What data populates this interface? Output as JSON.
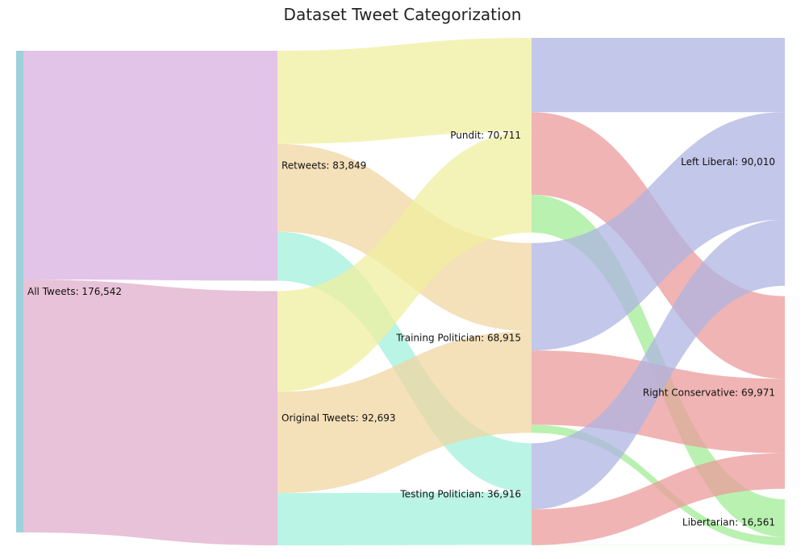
{
  "chart_data": {
    "type": "sankey",
    "title": "Dataset Tweet Categorization",
    "nodes": [
      {
        "id": "all",
        "label": "All Tweets: 176,542",
        "column": 0,
        "color": "#9dd1dc"
      },
      {
        "id": "retweets",
        "label": "Retweets: 83,849",
        "column": 1,
        "color": "#d8b0e0"
      },
      {
        "id": "original",
        "label": "Original Tweets: 92,693",
        "column": 1,
        "color": "#e0aecb"
      },
      {
        "id": "pundit",
        "label": "Pundit: 70,711",
        "column": 2,
        "color": "#f0ef9f"
      },
      {
        "id": "training",
        "label": "Training Politician: 68,915",
        "column": 2,
        "color": "#f0d6a2"
      },
      {
        "id": "testing",
        "label": "Testing Politician: 36,916",
        "column": 2,
        "color": "#a2f0db"
      },
      {
        "id": "left",
        "label": "Left Liberal: 90,010",
        "column": 3,
        "color": "#afb4e1"
      },
      {
        "id": "right",
        "label": "Right Conservative: 69,971",
        "column": 3,
        "color": "#eb9b9b"
      },
      {
        "id": "libertarian",
        "label": "Libertarian: 16,561",
        "column": 3,
        "color": "#a2ec95"
      }
    ],
    "links": [
      {
        "source": "all",
        "target": "retweets",
        "value": 83849,
        "color": "#d8b0e0"
      },
      {
        "source": "all",
        "target": "original",
        "value": 92693,
        "color": "#e0aecb"
      },
      {
        "source": "retweets",
        "target": "pundit",
        "value": 34000,
        "color": "#f0ef9f"
      },
      {
        "source": "retweets",
        "target": "training",
        "value": 32000,
        "color": "#f0d6a2"
      },
      {
        "source": "retweets",
        "target": "testing",
        "value": 17849,
        "color": "#a2f0db"
      },
      {
        "source": "original",
        "target": "pundit",
        "value": 36711,
        "color": "#f0ef9f"
      },
      {
        "source": "original",
        "target": "training",
        "value": 36915,
        "color": "#f0d6a2"
      },
      {
        "source": "original",
        "target": "testing",
        "value": 19067,
        "color": "#a2f0db"
      },
      {
        "source": "pundit",
        "target": "left",
        "value": 27000,
        "color": "#afb4e1"
      },
      {
        "source": "pundit",
        "target": "right",
        "value": 30000,
        "color": "#eb9b9b"
      },
      {
        "source": "pundit",
        "target": "libertarian",
        "value": 13711,
        "color": "#a2ec95"
      },
      {
        "source": "training",
        "target": "left",
        "value": 39000,
        "color": "#afb4e1"
      },
      {
        "source": "training",
        "target": "right",
        "value": 27000,
        "color": "#eb9b9b"
      },
      {
        "source": "training",
        "target": "libertarian",
        "value": 2915,
        "color": "#a2ec95"
      },
      {
        "source": "testing",
        "target": "left",
        "value": 24010,
        "color": "#afb4e1"
      },
      {
        "source": "testing",
        "target": "right",
        "value": 12971,
        "color": "#eb9b9b"
      },
      {
        "source": "testing",
        "target": "libertarian",
        "value": -65,
        "color": "#a2ec95"
      }
    ]
  }
}
